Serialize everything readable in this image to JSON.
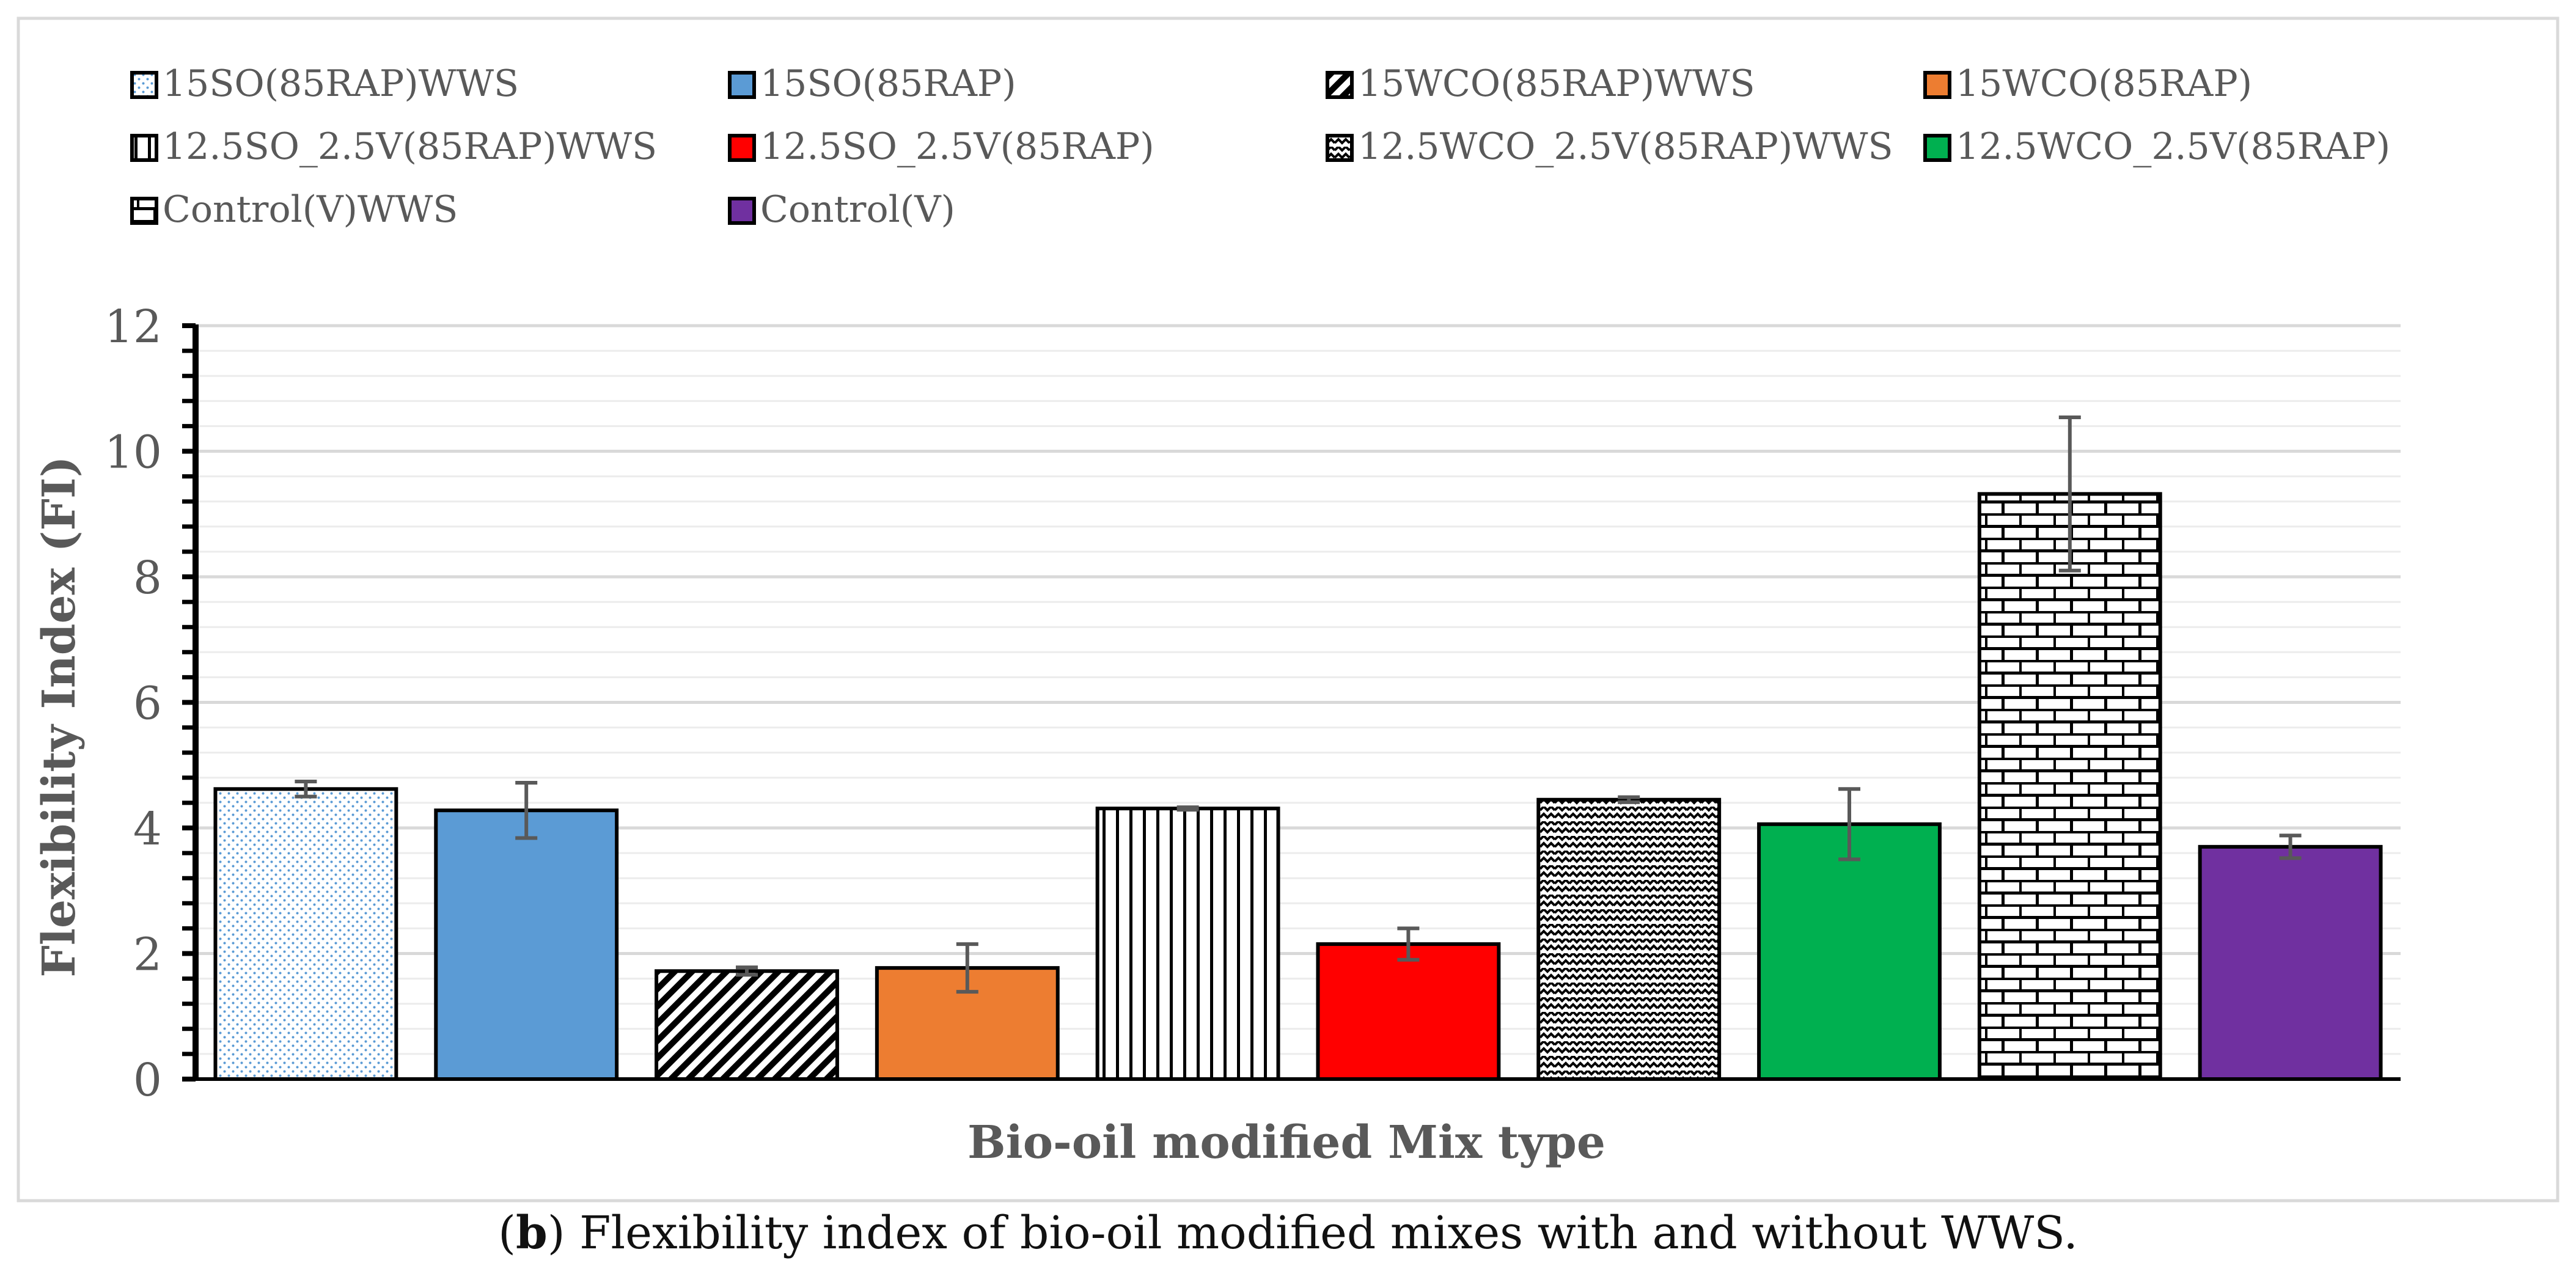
{
  "caption": {
    "open_paren": "(",
    "panel": "b",
    "close_paren": ")",
    "text": " Flexibility index of bio-oil modified mixes with and without WWS."
  },
  "chart_data": {
    "type": "bar",
    "title": "",
    "xlabel": "Bio-oil modified Mix type",
    "ylabel": "Flexibility Index (FI)",
    "ylim": [
      0,
      12
    ],
    "yticks": [
      0,
      2,
      4,
      6,
      8,
      10,
      12
    ],
    "grid": true,
    "legend_position": "top",
    "categories": [
      "15SO(85RAP)WWS",
      "15SO(85RAP)",
      "15WCO(85RAP)WWS",
      "15WCO(85RAP)",
      "12.5SO_2.5V(85RAP)WWS",
      "12.5SO_2.5V(85RAP)",
      "12.5WCO_2.5V(85RAP)WWS",
      "12.5WCO_2.5V(85RAP)",
      "Control(V)WWS",
      "Control(V)"
    ],
    "values": [
      4.62,
      4.28,
      1.72,
      1.77,
      4.31,
      2.15,
      4.45,
      4.06,
      9.32,
      3.7
    ],
    "error": [
      0.12,
      0.44,
      0.06,
      0.38,
      0.02,
      0.25,
      0.04,
      0.56,
      1.22,
      0.18
    ],
    "series_styles": [
      {
        "fill": "#ffffff",
        "pattern": "dots",
        "pattern_color": "#5b9bd5"
      },
      {
        "fill": "#5b9bd5",
        "pattern": "solid"
      },
      {
        "fill": "#ffffff",
        "pattern": "diagonal",
        "pattern_color": "#000000"
      },
      {
        "fill": "#ed7d31",
        "pattern": "solid"
      },
      {
        "fill": "#ffffff",
        "pattern": "vertical",
        "pattern_color": "#000000"
      },
      {
        "fill": "#ff0000",
        "pattern": "solid"
      },
      {
        "fill": "#ffffff",
        "pattern": "zigzag",
        "pattern_color": "#000000"
      },
      {
        "fill": "#00b050",
        "pattern": "solid"
      },
      {
        "fill": "#ffffff",
        "pattern": "brick",
        "pattern_color": "#000000"
      },
      {
        "fill": "#7030a0",
        "pattern": "solid"
      }
    ],
    "colors": {
      "axis": "#000000",
      "grid": "#d9d9d9",
      "minor_grid": "#ececec",
      "error_bar": "#595959",
      "text": "#595959"
    }
  }
}
